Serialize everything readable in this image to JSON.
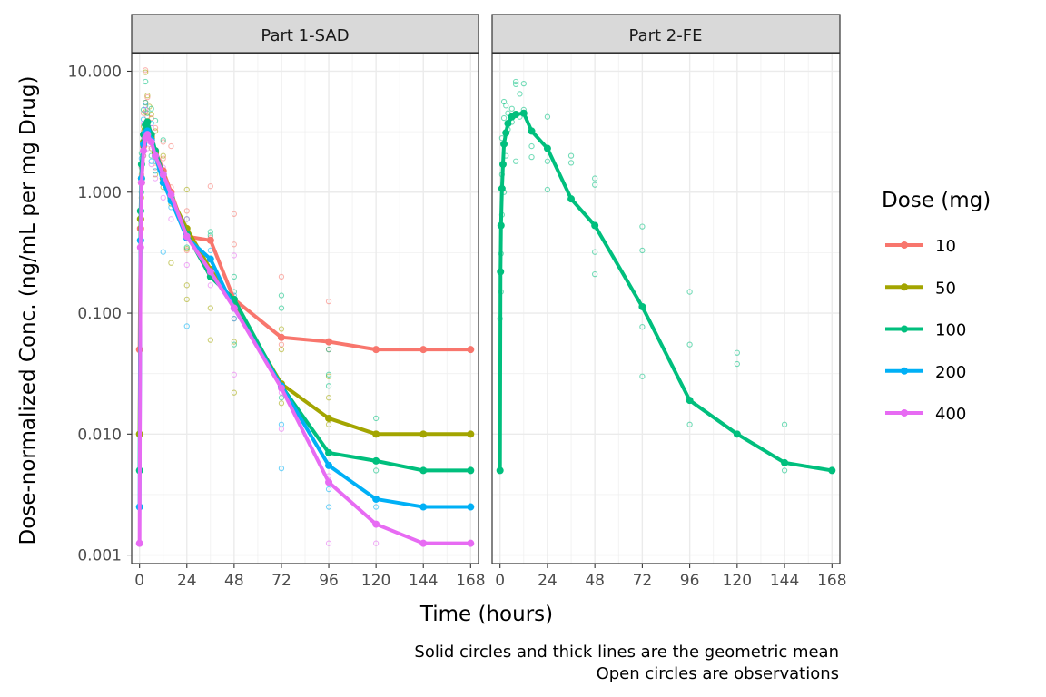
{
  "chart_data": {
    "type": "line",
    "facet_by": "part",
    "y_scale": "log10",
    "xlabel": "Time (hours)",
    "ylabel": "Dose-normalized Conc. (ng/mL per mg Drug)",
    "caption": [
      "Solid circles and thick lines are the geometric mean",
      "Open circles are observations"
    ],
    "xlim": [
      -4,
      172
    ],
    "ylim": [
      0.00085,
      14
    ],
    "x_ticks": [
      0,
      24,
      48,
      72,
      96,
      120,
      144,
      168
    ],
    "y_ticks": [
      0.001,
      0.01,
      0.1,
      1,
      10
    ],
    "y_tick_labels": [
      "0.001",
      "0.010",
      "0.100",
      "1.000",
      "10.000"
    ],
    "grid": true,
    "legend": {
      "title": "Dose (mg)",
      "position": "right",
      "entries": [
        {
          "label": "10",
          "color": "#F8766D"
        },
        {
          "label": "50",
          "color": "#A3A500"
        },
        {
          "label": "100",
          "color": "#00BF7D"
        },
        {
          "label": "200",
          "color": "#00B0F6"
        },
        {
          "label": "400",
          "color": "#E76BF3"
        }
      ]
    },
    "panels": [
      {
        "title": "Part 1-SAD",
        "series": [
          {
            "name": "10",
            "color": "#F8766D",
            "x": [
              0,
              0.5,
              1,
              2,
              3,
              4,
              6,
              8,
              12,
              16,
              24,
              36,
              48,
              72,
              96,
              120,
              144,
              168
            ],
            "y": [
              0.05,
              0.5,
              1.2,
              2.4,
              3.1,
              3.3,
              2.9,
              2.2,
              1.5,
              1.0,
              0.43,
              0.4,
              0.13,
              0.063,
              0.058,
              0.05,
              0.05,
              0.05
            ]
          },
          {
            "name": "50",
            "color": "#A3A500",
            "x": [
              0,
              0.5,
              1,
              2,
              3,
              4,
              6,
              8,
              12,
              16,
              24,
              36,
              48,
              72,
              96,
              120,
              144,
              168
            ],
            "y": [
              0.01,
              0.6,
              1.3,
              2.6,
              3.3,
              3.4,
              2.8,
              2.1,
              1.3,
              0.9,
              0.5,
              0.23,
              0.12,
              0.026,
              0.0135,
              0.01,
              0.01,
              0.01
            ]
          },
          {
            "name": "100",
            "color": "#00BF7D",
            "x": [
              0,
              0.5,
              1,
              2,
              3,
              4,
              6,
              8,
              12,
              16,
              24,
              36,
              48,
              72,
              96,
              120,
              144,
              168
            ],
            "y": [
              0.005,
              0.7,
              1.7,
              3.0,
              3.6,
              3.8,
              3.0,
              2.2,
              1.4,
              0.9,
              0.45,
              0.2,
              0.13,
              0.025,
              0.007,
              0.006,
              0.005,
              0.005
            ]
          },
          {
            "name": "200",
            "color": "#00B0F6",
            "x": [
              0,
              0.5,
              1,
              2,
              3,
              4,
              6,
              8,
              12,
              16,
              24,
              36,
              48,
              72,
              96,
              120,
              144,
              168
            ],
            "y": [
              0.0025,
              0.4,
              1.3,
              2.5,
              3.1,
              3.2,
              2.7,
              2.0,
              1.2,
              0.85,
              0.42,
              0.28,
              0.11,
              0.025,
              0.0055,
              0.0029,
              0.0025,
              0.0025
            ]
          },
          {
            "name": "400",
            "color": "#E76BF3",
            "x": [
              0,
              0.5,
              1,
              2,
              3,
              4,
              6,
              8,
              12,
              16,
              24,
              36,
              48,
              72,
              96,
              120,
              144,
              168
            ],
            "y": [
              0.00125,
              0.35,
              1.2,
              2.2,
              2.8,
              3.0,
              2.6,
              2.0,
              1.4,
              0.95,
              0.43,
              0.22,
              0.11,
              0.024,
              0.004,
              0.0018,
              0.00125,
              0.00125
            ]
          }
        ],
        "observations": [
          {
            "dose": "10",
            "x": [
              0,
              0,
              1,
              2,
              2,
              3,
              3,
              4,
              4,
              4,
              6,
              6,
              8,
              8,
              12,
              12,
              16,
              16,
              24,
              24,
              24,
              36,
              36,
              48,
              48,
              48,
              72,
              72,
              96,
              96,
              120,
              144
            ],
            "y": [
              0.05,
              0.05,
              1.4,
              3.2,
              4.5,
              5.5,
              10.2,
              4.2,
              3.0,
              6.1,
              2.9,
              4.1,
              1.6,
              3.4,
              1.9,
              2.6,
              1.1,
              2.4,
              0.33,
              0.5,
              0.7,
              1.12,
              0.42,
              0.66,
              0.37,
              0.09,
              0.2,
              0.055,
              0.125,
              0.05,
              0.05,
              0.05
            ]
          },
          {
            "dose": "50",
            "x": [
              0,
              0,
              1,
              1,
              2,
              2,
              3,
              3,
              4,
              4,
              5,
              6,
              6,
              8,
              8,
              12,
              12,
              16,
              16,
              24,
              24,
              24,
              24,
              36,
              36,
              48,
              48,
              72,
              72,
              72,
              96,
              96,
              96,
              120,
              120,
              144
            ],
            "y": [
              0.01,
              0.01,
              0.9,
              1.6,
              2.0,
              3.5,
              4.6,
              9.8,
              3.9,
              6.3,
              5.1,
              2.3,
              4.4,
              1.4,
              3.2,
              1.1,
              2.0,
              0.26,
              0.8,
              1.05,
              0.34,
              0.17,
              0.13,
              0.06,
              0.11,
              0.022,
              0.058,
              0.074,
              0.05,
              0.018,
              0.03,
              0.02,
              0.012,
              0.01,
              0.01,
              0.01
            ]
          },
          {
            "dose": "100",
            "x": [
              0,
              0,
              1,
              1,
              2,
              2,
              3,
              3,
              3,
              4,
              4,
              6,
              6,
              8,
              8,
              12,
              12,
              16,
              24,
              24,
              36,
              36,
              48,
              48,
              48,
              72,
              72,
              72,
              96,
              96,
              96,
              120,
              120,
              144
            ],
            "y": [
              0.005,
              0.005,
              1.0,
              2.1,
              2.6,
              4.8,
              3.2,
              5.5,
              8.2,
              4.5,
              3.0,
              2.0,
              4.9,
              1.8,
              3.9,
              1.2,
              2.7,
              0.9,
              0.35,
              0.6,
              0.44,
              0.47,
              0.2,
              0.15,
              0.055,
              0.14,
              0.11,
              0.02,
              0.05,
              0.031,
              0.025,
              0.0135,
              0.005,
              0.005
            ]
          },
          {
            "dose": "200",
            "x": [
              0,
              0,
              1,
              1,
              2,
              2,
              3,
              3,
              4,
              4,
              6,
              6,
              8,
              12,
              12,
              16,
              24,
              24,
              36,
              36,
              48,
              48,
              72,
              72,
              96,
              96,
              120,
              144
            ],
            "y": [
              0.0025,
              0.0025,
              0.7,
              1.9,
              2.3,
              4.0,
              3.0,
              5.2,
              3.6,
              2.7,
              1.8,
              3.7,
              1.5,
              0.32,
              1.3,
              0.75,
              0.078,
              0.45,
              0.33,
              0.23,
              0.14,
              0.09,
              0.0052,
              0.012,
              0.0035,
              0.0025,
              0.0025,
              0.0025
            ]
          },
          {
            "dose": "400",
            "x": [
              0,
              0,
              1,
              1,
              2,
              2,
              3,
              3,
              4,
              4,
              6,
              6,
              8,
              12,
              12,
              16,
              24,
              24,
              36,
              36,
              48,
              48,
              72,
              72,
              96,
              96,
              120,
              120,
              144
            ],
            "y": [
              0.00125,
              0.00125,
              0.6,
              1.6,
              2.0,
              3.7,
              2.6,
              4.8,
              3.3,
              2.3,
              1.7,
              3.4,
              1.3,
              0.9,
              1.6,
              0.6,
              0.25,
              0.6,
              0.21,
              0.17,
              0.3,
              0.031,
              0.011,
              0.022,
              0.0045,
              0.00125,
              0.0018,
              0.00125,
              0.00125
            ]
          }
        ]
      },
      {
        "title": "Part 2-FE",
        "series": [
          {
            "name": "100",
            "color": "#00BF7D",
            "x": [
              0,
              0.25,
              0.5,
              1,
              1.5,
              2,
              3,
              4,
              6,
              8,
              12,
              16,
              24,
              36,
              48,
              72,
              96,
              120,
              144,
              168
            ],
            "y": [
              0.005,
              0.22,
              0.53,
              1.07,
              1.7,
              2.5,
              3.1,
              3.7,
              4.2,
              4.4,
              4.5,
              3.2,
              2.3,
              0.88,
              0.53,
              0.113,
              0.019,
              0.01,
              0.0058,
              0.005
            ]
          }
        ],
        "observations": [
          {
            "dose": "100",
            "x": [
              0,
              0,
              0.5,
              0.5,
              1,
              1,
              1,
              2,
              2,
              2,
              3,
              3,
              4,
              4,
              6,
              6,
              8,
              8,
              8,
              10,
              10,
              12,
              12,
              16,
              16,
              24,
              24,
              24,
              36,
              36,
              48,
              48,
              48,
              48,
              72,
              72,
              72,
              72,
              96,
              96,
              96,
              120,
              120,
              144,
              144
            ],
            "y": [
              0.005,
              0.09,
              0.15,
              0.31,
              0.65,
              1.4,
              2.8,
              5.6,
              4.1,
              1.0,
              5.2,
              2.0,
              4.5,
              3.3,
              3.8,
              4.9,
              7.8,
              8.2,
              1.8,
              6.5,
              4.2,
              7.9,
              4.8,
              2.4,
              1.95,
              4.2,
              1.8,
              1.05,
              2.0,
              1.75,
              1.3,
              1.15,
              0.32,
              0.21,
              0.52,
              0.33,
              0.077,
              0.03,
              0.15,
              0.055,
              0.012,
              0.047,
              0.038,
              0.012,
              0.005
            ]
          }
        ]
      }
    ]
  }
}
